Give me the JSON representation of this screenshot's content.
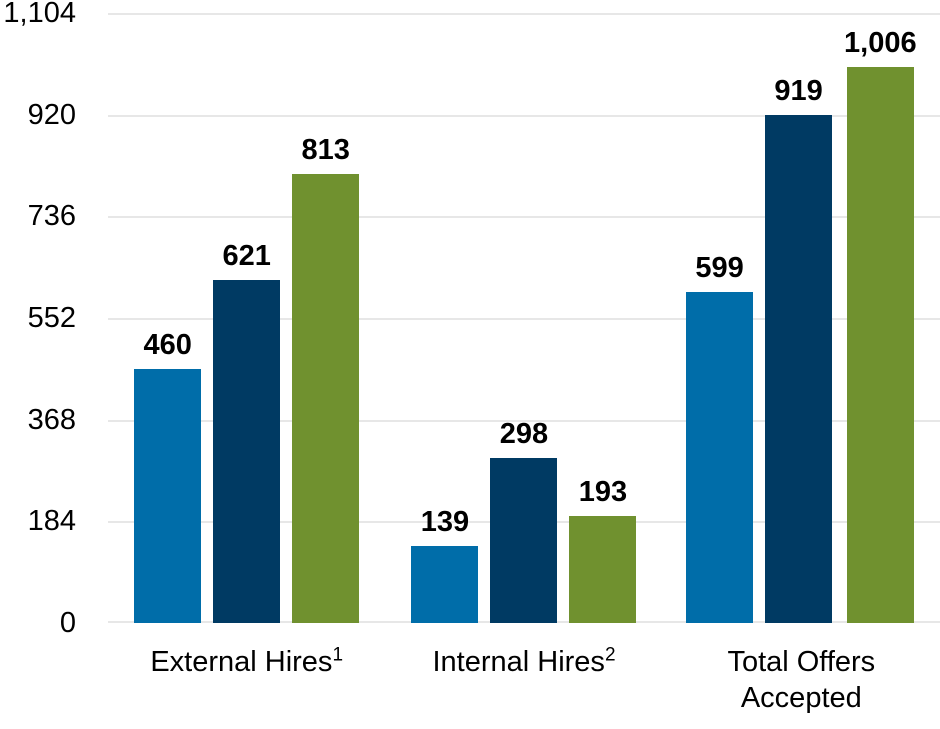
{
  "chart_data": {
    "type": "bar",
    "title": "",
    "legend": "none",
    "grid": true,
    "gridline_color": "#e7e7e7",
    "background_color": "#ffffff",
    "text_color": "#000000",
    "categories": [
      {
        "label": "External Hires",
        "superscript": "1"
      },
      {
        "label": "Internal Hires",
        "superscript": "2"
      },
      {
        "label": "Total Offers Accepted",
        "superscript": ""
      }
    ],
    "series": [
      {
        "color": "#006da9",
        "values": [
          460,
          139,
          599
        ],
        "labels": [
          "460",
          "139",
          "599"
        ]
      },
      {
        "color": "#003a63",
        "values": [
          621,
          298,
          919
        ],
        "labels": [
          "621",
          "298",
          "919"
        ]
      },
      {
        "color": "#70912f",
        "values": [
          813,
          193,
          1006
        ],
        "labels": [
          "813",
          "193",
          "1,006"
        ]
      }
    ],
    "y_axis": {
      "min": 0,
      "max": 1104,
      "ticks": [
        {
          "value": 0,
          "label": "0"
        },
        {
          "value": 184,
          "label": "184"
        },
        {
          "value": 368,
          "label": "368"
        },
        {
          "value": 552,
          "label": "552"
        },
        {
          "value": 736,
          "label": "736"
        },
        {
          "value": 920,
          "label": "920"
        },
        {
          "value": 1104,
          "label": "1,104"
        }
      ]
    }
  }
}
